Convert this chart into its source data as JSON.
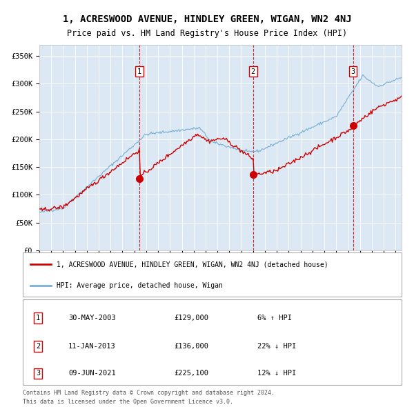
{
  "title": "1, ACRESWOOD AVENUE, HINDLEY GREEN, WIGAN, WN2 4NJ",
  "subtitle": "Price paid vs. HM Land Registry's House Price Index (HPI)",
  "red_line_label": "1, ACRESWOOD AVENUE, HINDLEY GREEN, WIGAN, WN2 4NJ (detached house)",
  "blue_line_label": "HPI: Average price, detached house, Wigan",
  "sales": [
    {
      "num": 1,
      "date": "30-MAY-2003",
      "price": 129000,
      "pct": "6%",
      "dir": "↑",
      "sale_year": 2003.42
    },
    {
      "num": 2,
      "date": "11-JAN-2013",
      "price": 136000,
      "pct": "22%",
      "dir": "↓",
      "sale_year": 2013.04
    },
    {
      "num": 3,
      "date": "09-JUN-2021",
      "price": 225100,
      "pct": "12%",
      "dir": "↓",
      "sale_year": 2021.44
    }
  ],
  "footer1": "Contains HM Land Registry data © Crown copyright and database right 2024.",
  "footer2": "This data is licensed under the Open Government Licence v3.0.",
  "ylim": [
    0,
    370000
  ],
  "yticks": [
    0,
    50000,
    100000,
    150000,
    200000,
    250000,
    300000,
    350000
  ],
  "xlim_start": 1995,
  "xlim_end": 2025.5,
  "plot_bg": "#dce9f5",
  "red_color": "#cc0000",
  "blue_color": "#7ab0d4"
}
